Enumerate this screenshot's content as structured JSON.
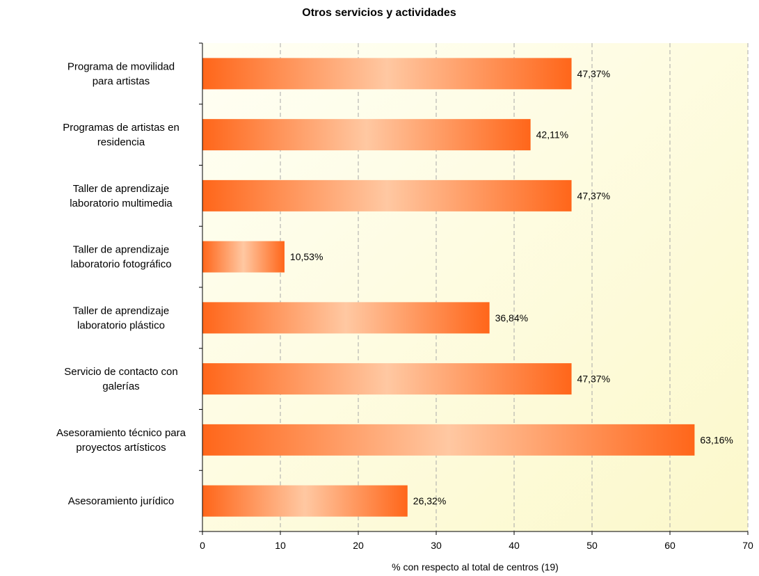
{
  "chart_data": {
    "type": "bar",
    "orientation": "horizontal",
    "title": "Otros servicios y actividades",
    "xlabel": "% con respecto al total de centros (19)",
    "ylabel": "",
    "xlim": [
      0,
      70
    ],
    "x_ticks": [
      "0",
      "10",
      "20",
      "30",
      "40",
      "50",
      "60",
      "70"
    ],
    "grid": "vertical dashed",
    "categories": [
      [
        "Programa de movilidad",
        "para artistas"
      ],
      [
        "Programas de artistas en",
        "residencia"
      ],
      [
        "Taller de aprendizaje",
        "laboratorio multimedia"
      ],
      [
        "Taller de aprendizaje",
        "laboratorio fotográfico"
      ],
      [
        "Taller de aprendizaje",
        "laboratorio plástico"
      ],
      [
        "Servicio de contacto con",
        "galerías"
      ],
      [
        "Asesoramiento técnico para",
        "proyectos artísticos"
      ],
      [
        "Asesoramiento jurídico"
      ]
    ],
    "values": [
      47.37,
      42.11,
      47.37,
      10.53,
      36.84,
      47.37,
      63.16,
      26.32
    ],
    "data_labels": [
      "47,37%",
      "42,11%",
      "47,37%",
      "10,53%",
      "36,84%",
      "47,37%",
      "63,16%",
      "26,32%"
    ],
    "colors": {
      "bar_edge": "#ff6a1a",
      "bar_center": "#ffc9a3",
      "plot_bg_light": "#fffff0",
      "plot_bg_warm": "#fdf9cf",
      "grid": "#a8a8a8"
    }
  }
}
